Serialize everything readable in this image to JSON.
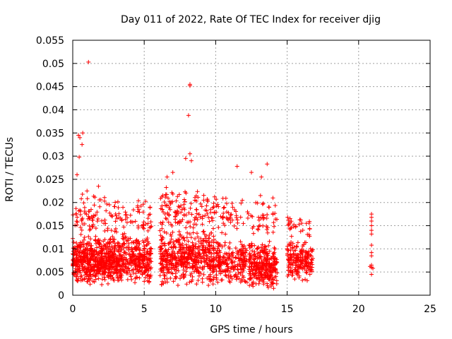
{
  "chart_data": {
    "type": "scatter",
    "title": "Day 011 of 2022, Rate Of TEC Index for receiver djig",
    "xlabel": "GPS time / hours",
    "ylabel": "ROTI / TECUs",
    "xlim": [
      0,
      25
    ],
    "ylim": [
      0,
      0.055
    ],
    "x_ticks": [
      0,
      5,
      10,
      15,
      20,
      25
    ],
    "x_tick_labels": [
      "0",
      "5",
      "10",
      "15",
      "20",
      "25"
    ],
    "y_ticks": [
      0,
      0.005,
      0.01,
      0.015,
      0.02,
      0.025,
      0.03,
      0.035,
      0.04,
      0.045,
      0.05,
      0.055
    ],
    "y_tick_labels": [
      "0",
      "0.005",
      "0.01",
      "0.015",
      "0.02",
      "0.025",
      "0.03",
      "0.035",
      "0.04",
      "0.045",
      "0.05",
      "0.055"
    ],
    "grid": true,
    "marker": "plus",
    "color": "#ff0000",
    "clusters": [
      {
        "x": [
          0.0,
          2.8
        ],
        "y": [
          0.002,
          0.013
        ],
        "n": 520
      },
      {
        "x": [
          2.8,
          5.5
        ],
        "y": [
          0.002,
          0.013
        ],
        "n": 400
      },
      {
        "x": [
          6.1,
          9.9
        ],
        "y": [
          0.002,
          0.014
        ],
        "n": 520
      },
      {
        "x": [
          10.0,
          12.2
        ],
        "y": [
          0.002,
          0.012
        ],
        "n": 220
      },
      {
        "x": [
          12.3,
          14.3
        ],
        "y": [
          0.001,
          0.012
        ],
        "n": 300
      },
      {
        "x": [
          15.0,
          16.8
        ],
        "y": [
          0.003,
          0.012
        ],
        "n": 200
      },
      {
        "x": [
          0.0,
          5.5
        ],
        "y": [
          0.012,
          0.022
        ],
        "n": 140
      },
      {
        "x": [
          6.1,
          10.0
        ],
        "y": [
          0.012,
          0.024
        ],
        "n": 140
      },
      {
        "x": [
          10.0,
          14.3
        ],
        "y": [
          0.012,
          0.022
        ],
        "n": 90
      },
      {
        "x": [
          15.0,
          16.6
        ],
        "y": [
          0.012,
          0.018
        ],
        "n": 30
      }
    ],
    "outliers": [
      {
        "x": 1.1,
        "y": 0.0503
      },
      {
        "x": 8.2,
        "y": 0.0455
      },
      {
        "x": 8.2,
        "y": 0.0452
      },
      {
        "x": 8.1,
        "y": 0.0388
      },
      {
        "x": 0.4,
        "y": 0.0345
      },
      {
        "x": 0.5,
        "y": 0.034
      },
      {
        "x": 0.7,
        "y": 0.035
      },
      {
        "x": 0.65,
        "y": 0.0325
      },
      {
        "x": 0.45,
        "y": 0.0298
      },
      {
        "x": 8.2,
        "y": 0.0305
      },
      {
        "x": 8.3,
        "y": 0.029
      },
      {
        "x": 7.9,
        "y": 0.0295
      },
      {
        "x": 11.5,
        "y": 0.0278
      },
      {
        "x": 13.6,
        "y": 0.0283
      },
      {
        "x": 7.0,
        "y": 0.0265
      },
      {
        "x": 0.3,
        "y": 0.026
      },
      {
        "x": 1.0,
        "y": 0.0225
      },
      {
        "x": 1.8,
        "y": 0.0235
      },
      {
        "x": 12.5,
        "y": 0.0265
      },
      {
        "x": 13.2,
        "y": 0.0255
      },
      {
        "x": 6.6,
        "y": 0.0255
      },
      {
        "x": 20.9,
        "y": 0.0175
      },
      {
        "x": 20.9,
        "y": 0.0168
      },
      {
        "x": 20.9,
        "y": 0.016
      },
      {
        "x": 20.9,
        "y": 0.015
      },
      {
        "x": 20.9,
        "y": 0.014
      },
      {
        "x": 20.9,
        "y": 0.0132
      },
      {
        "x": 20.9,
        "y": 0.0108
      },
      {
        "x": 20.9,
        "y": 0.0092
      },
      {
        "x": 20.9,
        "y": 0.0085
      },
      {
        "x": 20.9,
        "y": 0.0065
      },
      {
        "x": 20.9,
        "y": 0.006
      },
      {
        "x": 20.8,
        "y": 0.0062
      },
      {
        "x": 21.0,
        "y": 0.0058
      },
      {
        "x": 20.9,
        "y": 0.0045
      }
    ]
  }
}
